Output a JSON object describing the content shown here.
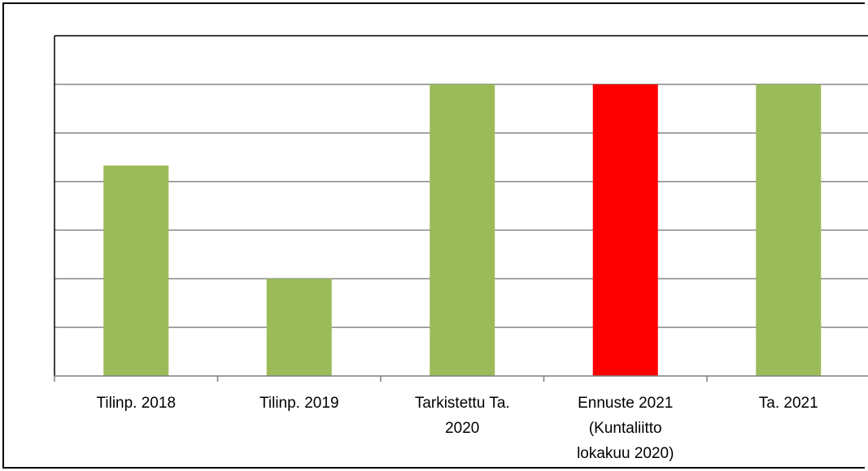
{
  "chart_data": {
    "type": "bar",
    "title": "",
    "xlabel": "",
    "ylabel": "",
    "categories": [
      [
        "Tilinp. 2018"
      ],
      [
        "Tilinp. 2019"
      ],
      [
        "Tarkistettu Ta.",
        "2020"
      ],
      [
        "Ennuste 2021",
        "(Kuntaliitto",
        "lokakuu 2020)"
      ],
      [
        "Ta. 2021"
      ]
    ],
    "values": [
      4.33,
      2.0,
      6.0,
      6.0,
      6.0
    ],
    "colors": [
      "#9bbb59",
      "#9bbb59",
      "#9bbb59",
      "#ff0000",
      "#9bbb59"
    ],
    "ylim": [
      0,
      7
    ],
    "y_gridlines": 7,
    "grid": true,
    "legend": "none",
    "y_tick_labels_visible": false
  }
}
